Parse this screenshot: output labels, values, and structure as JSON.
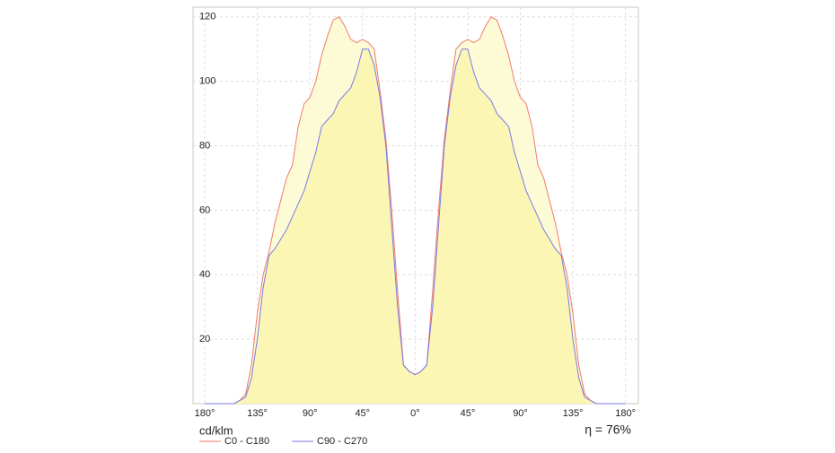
{
  "chart_data": {
    "type": "line",
    "y_label": "cd/klm",
    "annotation": "η = 76%",
    "x": [
      -180,
      -175,
      -170,
      -165,
      -160,
      -155,
      -150,
      -145,
      -140,
      -135,
      -130,
      -125,
      -120,
      -115,
      -110,
      -105,
      -100,
      -95,
      -90,
      -85,
      -80,
      -75,
      -70,
      -65,
      -60,
      -55,
      -50,
      -45,
      -40,
      -35,
      -30,
      -25,
      -20,
      -15,
      -10,
      -5,
      0,
      5,
      10,
      15,
      20,
      25,
      30,
      35,
      40,
      45,
      50,
      55,
      60,
      65,
      70,
      75,
      80,
      85,
      90,
      95,
      100,
      105,
      110,
      115,
      120,
      125,
      130,
      135,
      140,
      145,
      150,
      155,
      160,
      165,
      170,
      175,
      180
    ],
    "series": [
      {
        "name": "C0 - C180",
        "color": "#f07a6a",
        "fill": "#fdfbd6",
        "values": [
          0,
          0,
          0,
          0,
          0,
          0,
          1,
          3,
          12,
          28,
          40,
          47,
          56,
          63,
          70,
          74,
          86,
          93,
          95,
          100,
          108,
          114,
          119,
          120,
          117,
          113,
          112,
          113,
          112,
          110,
          97,
          82,
          60,
          35,
          12,
          10,
          9,
          10,
          12,
          35,
          60,
          82,
          97,
          110,
          112,
          113,
          112,
          113,
          117,
          120,
          119,
          114,
          108,
          100,
          95,
          93,
          86,
          74,
          70,
          63,
          56,
          47,
          40,
          28,
          12,
          3,
          1,
          0,
          0,
          0,
          0,
          0,
          0
        ]
      },
      {
        "name": "C90 - C270",
        "color": "#7a7ae6",
        "fill": "#fbf6b4",
        "values": [
          0,
          0,
          0,
          0,
          0,
          0,
          1,
          2,
          8,
          20,
          36,
          46,
          48,
          51,
          54,
          58,
          62,
          66,
          72,
          78,
          86,
          88,
          90,
          94,
          96,
          98,
          103,
          110,
          110,
          105,
          95,
          80,
          55,
          30,
          12,
          10,
          9,
          10,
          12,
          30,
          55,
          80,
          95,
          105,
          110,
          110,
          103,
          98,
          96,
          94,
          90,
          88,
          86,
          78,
          72,
          66,
          62,
          58,
          54,
          51,
          48,
          46,
          36,
          20,
          8,
          2,
          1,
          0,
          0,
          0,
          0,
          0,
          0
        ]
      }
    ],
    "xlim": [
      -190,
      191
    ],
    "ylim": [
      0,
      123
    ],
    "xticks": [
      {
        "value": -180,
        "label": "180°"
      },
      {
        "value": -135,
        "label": "135°"
      },
      {
        "value": -90,
        "label": "90°"
      },
      {
        "value": -45,
        "label": "45°"
      },
      {
        "value": 0,
        "label": "0°"
      },
      {
        "value": 45,
        "label": "45°"
      },
      {
        "value": 90,
        "label": "90°"
      },
      {
        "value": 135,
        "label": "135°"
      },
      {
        "value": 180,
        "label": "180°"
      }
    ],
    "yticks": [
      20,
      40,
      60,
      80,
      100,
      120
    ],
    "grid": true
  }
}
